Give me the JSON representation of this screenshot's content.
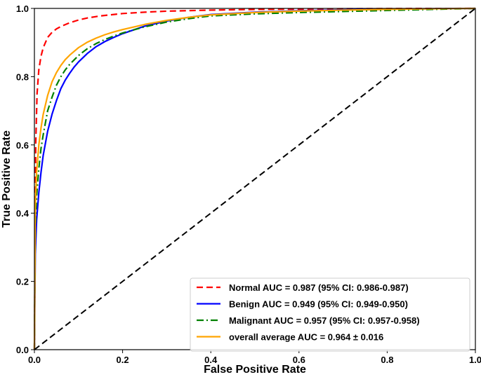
{
  "chart_data": {
    "type": "line",
    "title": "",
    "xlabel": "False Positive Rate",
    "ylabel": "True Positive Rate",
    "xlim": [
      0.0,
      1.0
    ],
    "ylim": [
      0.0,
      1.0
    ],
    "grid": false,
    "legend_position": "bottom-right",
    "xticks": [
      0.0,
      0.2,
      0.4,
      0.6,
      0.8,
      1.0
    ],
    "yticks": [
      0.0,
      0.2,
      0.4,
      0.6,
      0.8,
      1.0
    ],
    "xtick_labels": [
      "0.0",
      "0.2",
      "0.4",
      "0.6",
      "0.8",
      "1.0"
    ],
    "ytick_labels": [
      "0.0",
      "0.2",
      "0.4",
      "0.6",
      "0.8",
      "1.0"
    ],
    "series": [
      {
        "name": "Normal AUC = 0.987 (95% CI: 0.986-0.987)",
        "color": "#ff0000",
        "style": "dashed",
        "x": [
          0.0,
          0.003,
          0.006,
          0.01,
          0.015,
          0.02,
          0.03,
          0.04,
          0.05,
          0.06,
          0.08,
          0.1,
          0.12,
          0.15,
          0.2,
          0.25,
          0.3,
          0.4,
          0.5,
          0.6,
          0.7,
          0.8,
          0.9,
          1.0
        ],
        "y": [
          0.0,
          0.6,
          0.75,
          0.82,
          0.86,
          0.885,
          0.915,
          0.93,
          0.94,
          0.947,
          0.958,
          0.966,
          0.972,
          0.978,
          0.985,
          0.989,
          0.992,
          0.995,
          0.997,
          0.998,
          0.999,
          0.9995,
          0.9998,
          1.0
        ]
      },
      {
        "name": "Benign AUC = 0.949 (95% CI: 0.949-0.950)",
        "color": "#0000ff",
        "style": "solid",
        "x": [
          0.0,
          0.002,
          0.005,
          0.01,
          0.015,
          0.02,
          0.03,
          0.04,
          0.05,
          0.06,
          0.07,
          0.08,
          0.09,
          0.1,
          0.12,
          0.14,
          0.16,
          0.18,
          0.2,
          0.25,
          0.3,
          0.35,
          0.4,
          0.5,
          0.6,
          0.7,
          0.8,
          0.9,
          1.0
        ],
        "y": [
          0.0,
          0.28,
          0.38,
          0.46,
          0.52,
          0.57,
          0.64,
          0.69,
          0.73,
          0.765,
          0.79,
          0.81,
          0.828,
          0.843,
          0.868,
          0.888,
          0.903,
          0.915,
          0.926,
          0.948,
          0.963,
          0.974,
          0.982,
          0.989,
          0.993,
          0.996,
          0.998,
          0.999,
          1.0
        ]
      },
      {
        "name": "Malignant AUC = 0.957 (95% CI: 0.957-0.958)",
        "color": "#008000",
        "style": "dashdot",
        "x": [
          0.0,
          0.002,
          0.005,
          0.01,
          0.015,
          0.02,
          0.03,
          0.04,
          0.05,
          0.06,
          0.07,
          0.08,
          0.1,
          0.12,
          0.14,
          0.16,
          0.18,
          0.2,
          0.25,
          0.3,
          0.35,
          0.4,
          0.5,
          0.6,
          0.7,
          0.8,
          0.9,
          1.0
        ],
        "y": [
          0.0,
          0.36,
          0.45,
          0.53,
          0.59,
          0.63,
          0.7,
          0.74,
          0.775,
          0.8,
          0.82,
          0.836,
          0.862,
          0.882,
          0.897,
          0.909,
          0.919,
          0.928,
          0.946,
          0.96,
          0.97,
          0.978,
          0.984,
          0.988,
          0.991,
          0.994,
          0.997,
          1.0
        ]
      },
      {
        "name": "overall average AUC = 0.964 ± 0.016",
        "color": "#ffa500",
        "style": "solid",
        "x": [
          0.0,
          0.002,
          0.005,
          0.01,
          0.015,
          0.02,
          0.03,
          0.04,
          0.05,
          0.06,
          0.07,
          0.08,
          0.1,
          0.12,
          0.14,
          0.16,
          0.18,
          0.2,
          0.25,
          0.3,
          0.35,
          0.4,
          0.5,
          0.6,
          0.7,
          0.8,
          0.9,
          1.0
        ],
        "y": [
          0.0,
          0.42,
          0.52,
          0.6,
          0.65,
          0.69,
          0.745,
          0.785,
          0.812,
          0.833,
          0.85,
          0.863,
          0.885,
          0.901,
          0.913,
          0.923,
          0.931,
          0.938,
          0.953,
          0.965,
          0.974,
          0.981,
          0.988,
          0.992,
          0.995,
          0.997,
          0.999,
          1.0
        ]
      },
      {
        "name": "",
        "color": "#000000",
        "style": "dashed",
        "x": [
          0.0,
          1.0
        ],
        "y": [
          0.0,
          1.0
        ]
      }
    ]
  }
}
